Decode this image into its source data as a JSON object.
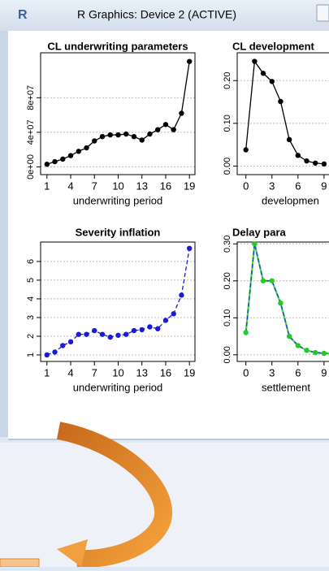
{
  "window": {
    "app_icon": "R",
    "title": "R Graphics: Device 2 (ACTIVE)"
  },
  "chart_data": [
    {
      "type": "scatter",
      "title": "CL underwriting parameters",
      "xlabel": "underwriting period",
      "x": [
        1,
        2,
        3,
        4,
        5,
        6,
        7,
        8,
        9,
        10,
        11,
        12,
        13,
        14,
        15,
        16,
        17,
        18,
        19
      ],
      "values": [
        3000000,
        6000000,
        9000000,
        13000000,
        18000000,
        22000000,
        30000000,
        35000000,
        37000000,
        37000000,
        38000000,
        35000000,
        31000000,
        38000000,
        43000000,
        49000000,
        43000000,
        62000000,
        122000000
      ],
      "color": "#000000",
      "line_color": "#000000",
      "line_style": "solid",
      "xlim": [
        0.2,
        19.7
      ],
      "xticks": [
        1,
        4,
        7,
        10,
        13,
        16,
        19
      ],
      "ylim": [
        -9000000,
        132000000
      ],
      "yticks": [
        {
          "value": 0,
          "label": "0e+00"
        },
        {
          "value": 40000000,
          "label": "4e+07"
        },
        {
          "value": 80000000,
          "label": "8e+07"
        }
      ],
      "grid": true
    },
    {
      "type": "scatter",
      "title": "CL development",
      "xlabel": "developmen",
      "x": [
        0,
        1,
        2,
        3,
        4,
        5,
        6,
        7,
        8,
        9
      ],
      "values": [
        0.038,
        0.245,
        0.217,
        0.198,
        0.151,
        0.062,
        0.025,
        0.012,
        0.007,
        0.005
      ],
      "color": "#000000",
      "line_color": "#000000",
      "line_style": "solid",
      "xlim": [
        -1,
        15
      ],
      "xticks": [
        0,
        3,
        6,
        9
      ],
      "ylim": [
        -0.02,
        0.265
      ],
      "yticks": [
        {
          "value": 0,
          "label": "0.00"
        },
        {
          "value": 0.1,
          "label": "0.10"
        },
        {
          "value": 0.2,
          "label": "0.20"
        }
      ],
      "grid": true
    },
    {
      "type": "scatter",
      "title": "Severity inflation",
      "xlabel": "underwriting period",
      "x": [
        1,
        2,
        3,
        4,
        5,
        6,
        7,
        8,
        9,
        10,
        11,
        12,
        13,
        14,
        15,
        16,
        17,
        18,
        19
      ],
      "values": [
        1.0,
        1.15,
        1.5,
        1.7,
        2.1,
        2.1,
        2.3,
        2.1,
        1.95,
        2.05,
        2.1,
        2.3,
        2.35,
        2.5,
        2.4,
        2.85,
        3.2,
        4.2,
        6.7
      ],
      "color": "#1a1adb",
      "line_color": "#1a1adb",
      "line_style": "dashed",
      "xlim": [
        0.2,
        19.7
      ],
      "xticks": [
        1,
        4,
        7,
        10,
        13,
        16,
        19
      ],
      "ylim": [
        0.65,
        7.04
      ],
      "yticks": [
        1,
        2,
        3,
        4,
        5,
        6
      ],
      "grid": true
    },
    {
      "type": "scatter",
      "title": "Delay para",
      "xlabel": "settlement",
      "x": [
        0,
        1,
        2,
        3,
        4,
        5,
        6,
        7,
        8,
        9,
        10
      ],
      "values": [
        0.06,
        0.3,
        0.2,
        0.2,
        0.14,
        0.05,
        0.025,
        0.012,
        0.006,
        0.004,
        0.003
      ],
      "color": "#22cc22",
      "line_color": "#1a3fd0",
      "line_style": "dashed",
      "xlim": [
        -1,
        15
      ],
      "xticks": [
        0,
        3,
        6,
        9
      ],
      "ylim": [
        -0.018,
        0.305
      ],
      "yticks": [
        {
          "value": 0,
          "label": "0.00"
        },
        {
          "value": 0.1,
          "label": "0.10"
        },
        {
          "value": 0.2,
          "label": "0.20"
        },
        {
          "value": 0.3,
          "label": "0.30"
        }
      ],
      "grid": true
    }
  ]
}
